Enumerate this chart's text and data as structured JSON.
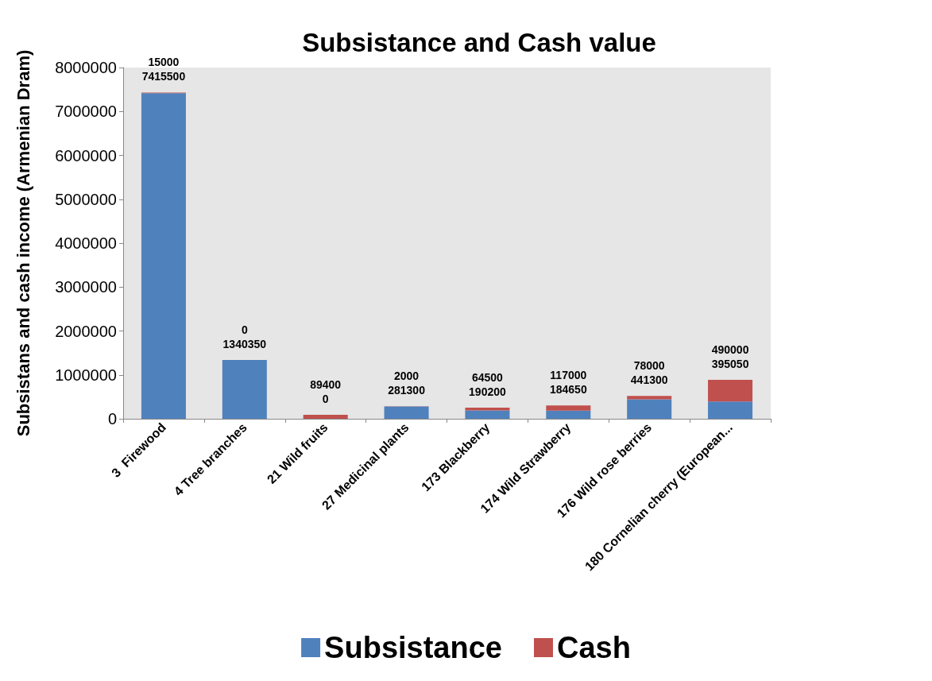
{
  "chart_data": {
    "type": "bar",
    "title": "Subsistance and Cash value",
    "ylabel": "Subsistans and cash income (Armenian Dram)",
    "categories": [
      "3  Firewood",
      "4 Tree branches",
      "21 Wild fruits",
      "27 Medicinal plants",
      "173 Blackberry",
      "174 Wild Strawberry",
      "176 Wild rose berries",
      "180 Cornelian cherry (European..."
    ],
    "series": [
      {
        "name": "Subsistance",
        "color": "#4f81bd",
        "values": [
          7415500,
          1340350,
          0,
          281300,
          190200,
          184650,
          441300,
          395050
        ]
      },
      {
        "name": "Cash",
        "color": "#c0504d",
        "values": [
          15000,
          0,
          89400,
          2000,
          64500,
          117000,
          78000,
          490000
        ]
      }
    ],
    "stacked": true,
    "data_labels": true,
    "ylim": [
      0,
      8000000
    ],
    "yticks": [
      0,
      1000000,
      2000000,
      3000000,
      4000000,
      5000000,
      6000000,
      7000000,
      8000000
    ],
    "grid": false,
    "legend": "bottom"
  }
}
